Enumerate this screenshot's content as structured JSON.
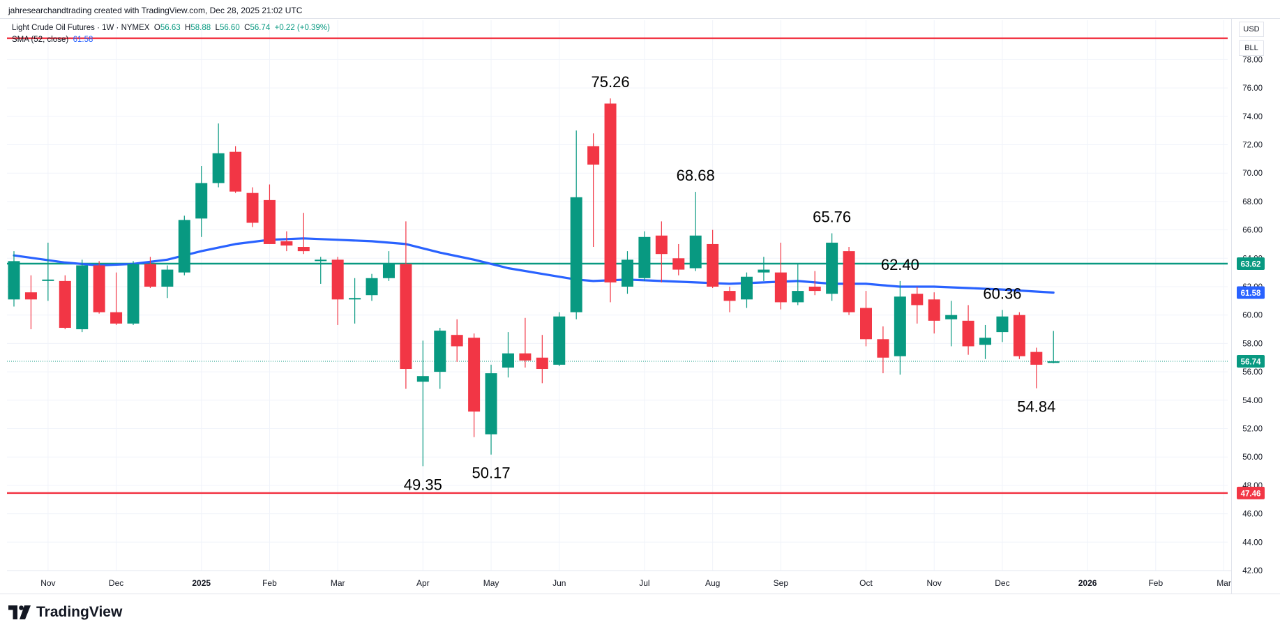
{
  "header": {
    "credit": "jahresearchandtrading created with TradingView.com, Dec 28, 2025 21:02 UTC"
  },
  "legend": {
    "symbol": "Light Crude Oil Futures · 1W · NYMEX",
    "o_label": "O",
    "o_value": "56.63",
    "h_label": "H",
    "h_value": "58.88",
    "l_label": "L",
    "l_value": "56.60",
    "c_label": "C",
    "c_value": "56.74",
    "change": "+0.22 (+0.39%)",
    "sma_label": "SMA (52, close)",
    "sma_value": "61.58"
  },
  "units": {
    "currency": "USD",
    "unit": "BLL"
  },
  "brand": {
    "name": "TradingView"
  },
  "colors": {
    "up": "#089981",
    "down": "#f23645",
    "sma": "#2962ff",
    "grid": "#f0f3fa",
    "axis_text": "#131722"
  },
  "chart_data": {
    "type": "candlestick",
    "title": "Light Crude Oil Futures · 1W · NYMEX",
    "ylim": [
      42,
      79
    ],
    "y_ticks": [
      "42.00",
      "44.00",
      "46.00",
      "48.00",
      "50.00",
      "52.00",
      "54.00",
      "56.00",
      "58.00",
      "60.00",
      "62.00",
      "64.00",
      "66.00",
      "68.00",
      "70.00",
      "72.00",
      "74.00",
      "76.00",
      "78.00"
    ],
    "x_labels": [
      {
        "label": "Nov",
        "week": 2
      },
      {
        "label": "Dec",
        "week": 6
      },
      {
        "label": "2025",
        "week": 11,
        "bold": true
      },
      {
        "label": "Feb",
        "week": 15
      },
      {
        "label": "Mar",
        "week": 19
      },
      {
        "label": "Apr",
        "week": 24
      },
      {
        "label": "May",
        "week": 28
      },
      {
        "label": "Jun",
        "week": 32
      },
      {
        "label": "Jul",
        "week": 37
      },
      {
        "label": "Aug",
        "week": 41
      },
      {
        "label": "Sep",
        "week": 45
      },
      {
        "label": "Oct",
        "week": 50
      },
      {
        "label": "Nov",
        "week": 54
      },
      {
        "label": "Dec",
        "week": 58
      },
      {
        "label": "2026",
        "week": 63,
        "bold": true
      },
      {
        "label": "Feb",
        "week": 67
      },
      {
        "label": "Mar",
        "week": 71
      }
    ],
    "candles": [
      {
        "o": 61.1,
        "h": 64.5,
        "l": 60.6,
        "c": 63.8
      },
      {
        "o": 61.6,
        "h": 62.8,
        "l": 59.0,
        "c": 61.1
      },
      {
        "o": 62.5,
        "h": 65.1,
        "l": 61.0,
        "c": 62.5
      },
      {
        "o": 62.4,
        "h": 62.8,
        "l": 59.0,
        "c": 59.1
      },
      {
        "o": 59.0,
        "h": 63.9,
        "l": 58.8,
        "c": 63.5
      },
      {
        "o": 63.5,
        "h": 63.8,
        "l": 60.1,
        "c": 60.2
      },
      {
        "o": 60.2,
        "h": 63.0,
        "l": 59.3,
        "c": 59.4
      },
      {
        "o": 59.4,
        "h": 63.8,
        "l": 59.3,
        "c": 63.6
      },
      {
        "o": 63.6,
        "h": 64.1,
        "l": 61.9,
        "c": 62.0
      },
      {
        "o": 62.0,
        "h": 63.5,
        "l": 61.2,
        "c": 63.2
      },
      {
        "o": 63.0,
        "h": 67.0,
        "l": 62.8,
        "c": 66.7
      },
      {
        "o": 66.8,
        "h": 70.5,
        "l": 65.5,
        "c": 69.3
      },
      {
        "o": 69.3,
        "h": 73.5,
        "l": 69.0,
        "c": 71.4
      },
      {
        "o": 71.5,
        "h": 71.9,
        "l": 68.6,
        "c": 68.7
      },
      {
        "o": 68.6,
        "h": 69.0,
        "l": 66.2,
        "c": 66.5
      },
      {
        "o": 68.1,
        "h": 69.2,
        "l": 65.0,
        "c": 65.0
      },
      {
        "o": 65.2,
        "h": 65.9,
        "l": 64.5,
        "c": 64.9
      },
      {
        "o": 64.8,
        "h": 67.2,
        "l": 64.3,
        "c": 64.5
      },
      {
        "o": 63.9,
        "h": 64.1,
        "l": 62.2,
        "c": 63.9
      },
      {
        "o": 63.9,
        "h": 64.1,
        "l": 59.3,
        "c": 61.1
      },
      {
        "o": 61.1,
        "h": 62.6,
        "l": 59.4,
        "c": 61.2
      },
      {
        "o": 61.4,
        "h": 62.9,
        "l": 61.0,
        "c": 62.6
      },
      {
        "o": 62.6,
        "h": 64.5,
        "l": 62.4,
        "c": 63.6
      },
      {
        "o": 63.6,
        "h": 66.6,
        "l": 54.8,
        "c": 56.2
      },
      {
        "o": 55.3,
        "h": 58.2,
        "l": 49.35,
        "c": 55.7
      },
      {
        "o": 56.0,
        "h": 59.1,
        "l": 54.8,
        "c": 58.9
      },
      {
        "o": 58.6,
        "h": 59.7,
        "l": 56.7,
        "c": 57.8
      },
      {
        "o": 58.4,
        "h": 58.7,
        "l": 51.4,
        "c": 53.2
      },
      {
        "o": 51.6,
        "h": 56.5,
        "l": 50.17,
        "c": 55.9
      },
      {
        "o": 56.3,
        "h": 58.8,
        "l": 55.6,
        "c": 57.3
      },
      {
        "o": 57.3,
        "h": 59.8,
        "l": 56.3,
        "c": 56.8
      },
      {
        "o": 57.0,
        "h": 58.6,
        "l": 55.2,
        "c": 56.2
      },
      {
        "o": 56.5,
        "h": 60.2,
        "l": 56.4,
        "c": 59.9
      },
      {
        "o": 60.2,
        "h": 73.0,
        "l": 59.7,
        "c": 68.3
      },
      {
        "o": 71.9,
        "h": 72.8,
        "l": 64.8,
        "c": 70.6
      },
      {
        "o": 74.9,
        "h": 75.26,
        "l": 60.9,
        "c": 62.3
      },
      {
        "o": 62.0,
        "h": 64.5,
        "l": 61.5,
        "c": 63.9
      },
      {
        "o": 62.6,
        "h": 65.9,
        "l": 62.4,
        "c": 65.5
      },
      {
        "o": 65.6,
        "h": 66.6,
        "l": 62.3,
        "c": 64.3
      },
      {
        "o": 64.0,
        "h": 65.0,
        "l": 62.8,
        "c": 63.2
      },
      {
        "o": 63.3,
        "h": 68.68,
        "l": 63.1,
        "c": 65.6
      },
      {
        "o": 65.0,
        "h": 66.0,
        "l": 61.9,
        "c": 62.0
      },
      {
        "o": 61.7,
        "h": 62.0,
        "l": 60.2,
        "c": 61.0
      },
      {
        "o": 61.1,
        "h": 63.0,
        "l": 60.5,
        "c": 62.7
      },
      {
        "o": 63.0,
        "h": 64.1,
        "l": 62.4,
        "c": 63.2
      },
      {
        "o": 63.0,
        "h": 65.1,
        "l": 60.4,
        "c": 60.9
      },
      {
        "o": 60.9,
        "h": 63.6,
        "l": 60.7,
        "c": 61.7
      },
      {
        "o": 62.0,
        "h": 63.1,
        "l": 61.4,
        "c": 61.7
      },
      {
        "o": 61.5,
        "h": 65.76,
        "l": 61.0,
        "c": 65.1
      },
      {
        "o": 64.5,
        "h": 64.8,
        "l": 60.0,
        "c": 60.2
      },
      {
        "o": 60.5,
        "h": 61.7,
        "l": 57.8,
        "c": 58.3
      },
      {
        "o": 58.3,
        "h": 59.2,
        "l": 55.9,
        "c": 57.0
      },
      {
        "o": 57.1,
        "h": 62.4,
        "l": 55.8,
        "c": 61.3
      },
      {
        "o": 61.5,
        "h": 62.0,
        "l": 59.4,
        "c": 60.7
      },
      {
        "o": 61.1,
        "h": 61.6,
        "l": 58.7,
        "c": 59.6
      },
      {
        "o": 59.7,
        "h": 61.0,
        "l": 57.8,
        "c": 60.0
      },
      {
        "o": 59.6,
        "h": 60.7,
        "l": 57.2,
        "c": 57.8
      },
      {
        "o": 57.9,
        "h": 59.3,
        "l": 56.9,
        "c": 58.4
      },
      {
        "o": 58.8,
        "h": 60.36,
        "l": 58.1,
        "c": 59.9
      },
      {
        "o": 60.0,
        "h": 60.2,
        "l": 56.9,
        "c": 57.1
      },
      {
        "o": 57.4,
        "h": 57.7,
        "l": 54.84,
        "c": 56.5
      },
      {
        "o": 56.63,
        "h": 58.88,
        "l": 56.6,
        "c": 56.74
      }
    ],
    "sma": {
      "name": "SMA (52, close)",
      "points": [
        [
          0,
          64.2
        ],
        [
          3,
          63.7
        ],
        [
          5,
          63.5
        ],
        [
          7,
          63.6
        ],
        [
          9,
          63.9
        ],
        [
          11,
          64.5
        ],
        [
          13,
          65.0
        ],
        [
          15,
          65.3
        ],
        [
          17,
          65.4
        ],
        [
          19,
          65.3
        ],
        [
          21,
          65.2
        ],
        [
          23,
          65.0
        ],
        [
          25,
          64.4
        ],
        [
          27,
          63.9
        ],
        [
          29,
          63.3
        ],
        [
          31,
          62.9
        ],
        [
          33,
          62.5
        ],
        [
          34,
          62.4
        ],
        [
          36,
          62.5
        ],
        [
          38,
          62.4
        ],
        [
          40,
          62.3
        ],
        [
          42,
          62.2
        ],
        [
          44,
          62.3
        ],
        [
          46,
          62.4
        ],
        [
          48,
          62.2
        ],
        [
          50,
          62.2
        ],
        [
          51,
          62.1
        ],
        [
          52,
          62.0
        ],
        [
          54,
          62.0
        ],
        [
          56,
          61.9
        ],
        [
          58,
          61.8
        ],
        [
          61,
          61.58
        ]
      ]
    },
    "horizontal_lines": [
      {
        "value": 79.5,
        "color": "#f23645"
      },
      {
        "value": 63.62,
        "color": "#089981",
        "tag": "63.62"
      },
      {
        "value": 47.46,
        "color": "#f23645",
        "tag": "47.46"
      }
    ],
    "last_price": {
      "value": 56.74,
      "tag": "56.74"
    },
    "sma_tag": {
      "value": 61.58,
      "tag": "61.58"
    },
    "annotations": [
      {
        "text": "75.26",
        "week": 35,
        "y": 75.26,
        "pos": "above"
      },
      {
        "text": "68.68",
        "week": 40,
        "y": 68.68,
        "pos": "above"
      },
      {
        "text": "65.76",
        "week": 48,
        "y": 65.76,
        "pos": "above"
      },
      {
        "text": "62.40",
        "week": 52,
        "y": 62.4,
        "pos": "above"
      },
      {
        "text": "60.36",
        "week": 58,
        "y": 60.36,
        "pos": "above"
      },
      {
        "text": "49.35",
        "week": 24,
        "y": 49.35,
        "pos": "below"
      },
      {
        "text": "50.17",
        "week": 28,
        "y": 50.17,
        "pos": "below"
      },
      {
        "text": "54.84",
        "week": 60,
        "y": 54.84,
        "pos": "below"
      }
    ]
  }
}
